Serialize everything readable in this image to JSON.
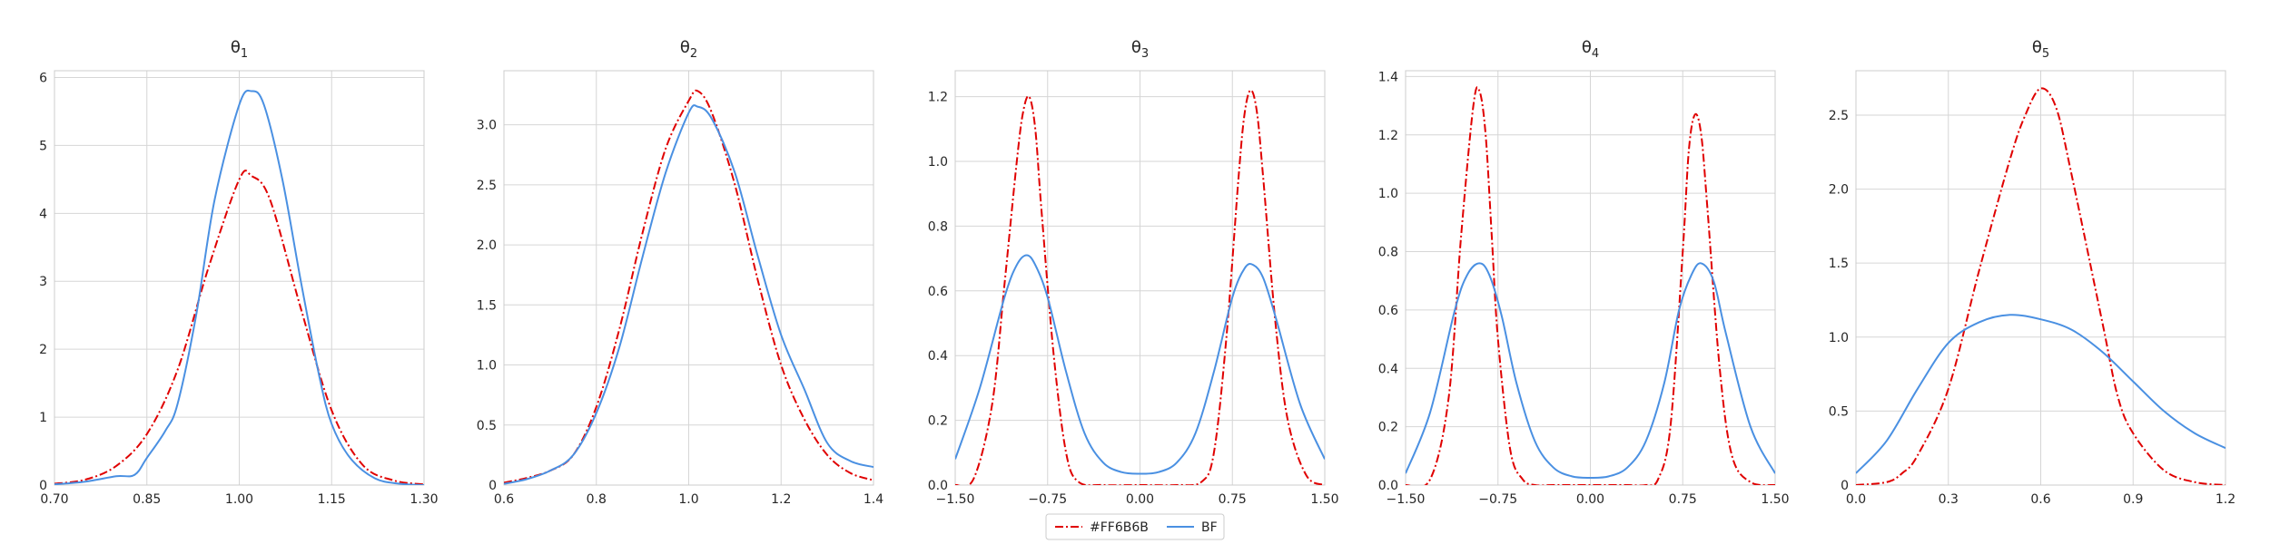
{
  "chart_data": [
    {
      "type": "line",
      "title_base": "θ",
      "title_sub": "1",
      "xlim": [
        0.7,
        1.3
      ],
      "ylim": [
        0,
        6.1
      ],
      "xticks": [
        0.7,
        0.85,
        1.0,
        1.15,
        1.3
      ],
      "xtick_labels": [
        "0.70",
        "0.85",
        "1.00",
        "1.15",
        "1.30"
      ],
      "yticks": [
        0,
        1,
        2,
        3,
        4,
        5,
        6
      ],
      "ytick_labels": [
        "0",
        "1",
        "2",
        "3",
        "4",
        "5",
        "6"
      ],
      "series": [
        {
          "name": "#FF6B6B",
          "x": [
            0.7,
            0.75,
            0.8,
            0.85,
            0.9,
            0.95,
            1.0,
            1.02,
            1.05,
            1.1,
            1.15,
            1.2,
            1.25,
            1.3
          ],
          "y": [
            0.02,
            0.08,
            0.28,
            0.75,
            1.7,
            3.2,
            4.5,
            4.55,
            4.2,
            2.6,
            1.1,
            0.3,
            0.07,
            0.01
          ]
        },
        {
          "name": "BF",
          "x": [
            0.7,
            0.75,
            0.8,
            0.83,
            0.85,
            0.88,
            0.9,
            0.93,
            0.96,
            1.0,
            1.02,
            1.04,
            1.07,
            1.1,
            1.13,
            1.15,
            1.18,
            1.22,
            1.26,
            1.3
          ],
          "y": [
            0.01,
            0.05,
            0.13,
            0.15,
            0.4,
            0.8,
            1.2,
            2.5,
            4.2,
            5.6,
            5.8,
            5.6,
            4.5,
            3.0,
            1.6,
            0.9,
            0.4,
            0.1,
            0.02,
            0.0
          ]
        }
      ]
    },
    {
      "type": "line",
      "title_base": "θ",
      "title_sub": "2",
      "xlim": [
        0.6,
        1.4
      ],
      "ylim": [
        0,
        3.45
      ],
      "xticks": [
        0.6,
        0.8,
        1.0,
        1.2,
        1.4
      ],
      "xtick_labels": [
        "0.6",
        "0.8",
        "1.0",
        "1.2",
        "1.4"
      ],
      "yticks": [
        0,
        0.5,
        1.0,
        1.5,
        2.0,
        2.5,
        3.0
      ],
      "ytick_labels": [
        "0",
        "0.5",
        "1.0",
        "1.5",
        "2.0",
        "2.5",
        "3.0"
      ],
      "series": [
        {
          "name": "#FF6B6B",
          "x": [
            0.6,
            0.65,
            0.7,
            0.75,
            0.8,
            0.85,
            0.9,
            0.95,
            1.0,
            1.02,
            1.05,
            1.1,
            1.15,
            1.2,
            1.25,
            1.3,
            1.35,
            1.4
          ],
          "y": [
            0.02,
            0.06,
            0.12,
            0.25,
            0.65,
            1.3,
            2.1,
            2.8,
            3.2,
            3.28,
            3.1,
            2.5,
            1.7,
            1.0,
            0.55,
            0.25,
            0.1,
            0.04
          ]
        },
        {
          "name": "BF",
          "x": [
            0.6,
            0.65,
            0.7,
            0.75,
            0.8,
            0.85,
            0.9,
            0.95,
            1.0,
            1.02,
            1.05,
            1.1,
            1.15,
            1.2,
            1.25,
            1.3,
            1.35,
            1.4
          ],
          "y": [
            0.01,
            0.05,
            0.12,
            0.25,
            0.6,
            1.15,
            1.9,
            2.6,
            3.1,
            3.15,
            3.05,
            2.6,
            1.9,
            1.25,
            0.8,
            0.35,
            0.2,
            0.15
          ]
        }
      ]
    },
    {
      "type": "line",
      "title_base": "θ",
      "title_sub": "3",
      "xlim": [
        -1.5,
        1.5
      ],
      "ylim": [
        0,
        1.28
      ],
      "xticks": [
        -1.5,
        -0.75,
        0,
        0.75,
        1.5
      ],
      "xtick_labels": [
        "−1.50",
        "−0.75",
        "0.00",
        "0.75",
        "1.50"
      ],
      "yticks": [
        0,
        0.2,
        0.4,
        0.6,
        0.8,
        1.0,
        1.2
      ],
      "ytick_labels": [
        "0.0",
        "0.2",
        "0.4",
        "0.6",
        "0.8",
        "1.0",
        "1.2"
      ],
      "series": [
        {
          "name": "#FF6B6B",
          "x": [
            -1.5,
            -1.35,
            -1.2,
            -1.1,
            -1.0,
            -0.95,
            -0.9,
            -0.85,
            -0.8,
            -0.7,
            -0.6,
            -0.5,
            -0.3,
            0,
            0.3,
            0.5,
            0.6,
            0.7,
            0.8,
            0.85,
            0.9,
            0.95,
            1.0,
            1.1,
            1.2,
            1.35,
            1.5
          ],
          "y": [
            0.0,
            0.02,
            0.25,
            0.62,
            1.0,
            1.15,
            1.2,
            1.1,
            0.85,
            0.4,
            0.1,
            0.01,
            0.0,
            0.0,
            0.0,
            0.01,
            0.1,
            0.45,
            0.95,
            1.15,
            1.22,
            1.15,
            0.95,
            0.5,
            0.2,
            0.03,
            0.0
          ]
        },
        {
          "name": "BF",
          "x": [
            -1.5,
            -1.3,
            -1.1,
            -1.0,
            -0.92,
            -0.85,
            -0.75,
            -0.6,
            -0.45,
            -0.3,
            -0.15,
            0,
            0.15,
            0.3,
            0.45,
            0.6,
            0.75,
            0.85,
            0.92,
            1.0,
            1.1,
            1.3,
            1.5
          ],
          "y": [
            0.08,
            0.3,
            0.58,
            0.68,
            0.71,
            0.68,
            0.58,
            0.35,
            0.16,
            0.07,
            0.04,
            0.035,
            0.04,
            0.07,
            0.16,
            0.35,
            0.58,
            0.67,
            0.68,
            0.64,
            0.52,
            0.25,
            0.08
          ]
        }
      ]
    },
    {
      "type": "line",
      "title_base": "θ",
      "title_sub": "4",
      "xlim": [
        -1.5,
        1.5
      ],
      "ylim": [
        0,
        1.42
      ],
      "xticks": [
        -1.5,
        -0.75,
        0,
        0.75,
        1.5
      ],
      "xtick_labels": [
        "−1.50",
        "−0.75",
        "0.00",
        "0.75",
        "1.50"
      ],
      "yticks": [
        0,
        0.2,
        0.4,
        0.6,
        0.8,
        1.0,
        1.2,
        1.4
      ],
      "ytick_labels": [
        "0.0",
        "0.2",
        "0.4",
        "0.6",
        "0.8",
        "1.0",
        "1.2",
        "1.4"
      ],
      "series": [
        {
          "name": "#FF6B6B",
          "x": [
            -1.5,
            -1.3,
            -1.15,
            -1.05,
            -0.95,
            -0.9,
            -0.85,
            -0.8,
            -0.75,
            -0.65,
            -0.55,
            -0.45,
            -0.3,
            0,
            0.3,
            0.45,
            0.55,
            0.65,
            0.75,
            0.8,
            0.85,
            0.9,
            0.95,
            1.05,
            1.15,
            1.3,
            1.5
          ],
          "y": [
            0.0,
            0.02,
            0.3,
            0.85,
            1.3,
            1.35,
            1.2,
            0.85,
            0.5,
            0.12,
            0.02,
            0.0,
            0.0,
            0.0,
            0.0,
            0.0,
            0.02,
            0.2,
            0.8,
            1.15,
            1.27,
            1.2,
            0.95,
            0.4,
            0.1,
            0.01,
            0.0
          ]
        },
        {
          "name": "BF",
          "x": [
            -1.5,
            -1.3,
            -1.1,
            -1.0,
            -0.9,
            -0.82,
            -0.72,
            -0.6,
            -0.45,
            -0.3,
            -0.15,
            0,
            0.15,
            0.3,
            0.45,
            0.6,
            0.72,
            0.82,
            0.9,
            1.0,
            1.1,
            1.3,
            1.5
          ],
          "y": [
            0.04,
            0.25,
            0.6,
            0.72,
            0.76,
            0.72,
            0.58,
            0.35,
            0.15,
            0.06,
            0.03,
            0.025,
            0.03,
            0.06,
            0.15,
            0.35,
            0.6,
            0.72,
            0.76,
            0.7,
            0.52,
            0.2,
            0.04
          ]
        }
      ]
    },
    {
      "type": "line",
      "title_base": "θ",
      "title_sub": "5",
      "xlim": [
        0,
        1.2
      ],
      "ylim": [
        0,
        2.8
      ],
      "xticks": [
        0,
        0.3,
        0.6,
        0.9,
        1.2
      ],
      "xtick_labels": [
        "0.0",
        "0.3",
        "0.6",
        "0.9",
        "1.2"
      ],
      "yticks": [
        0,
        0.5,
        1.0,
        1.5,
        2.0,
        2.5
      ],
      "ytick_labels": [
        "0",
        "0.5",
        "1.0",
        "1.5",
        "2.0",
        "2.5"
      ],
      "series": [
        {
          "name": "#FF6B6B",
          "x": [
            0,
            0.1,
            0.15,
            0.2,
            0.3,
            0.4,
            0.5,
            0.55,
            0.6,
            0.65,
            0.7,
            0.8,
            0.85,
            0.9,
            1.0,
            1.1,
            1.2
          ],
          "y": [
            0.0,
            0.02,
            0.08,
            0.2,
            0.65,
            1.45,
            2.2,
            2.5,
            2.68,
            2.55,
            2.1,
            1.1,
            0.6,
            0.35,
            0.1,
            0.02,
            0.0
          ]
        },
        {
          "name": "BF",
          "x": [
            0,
            0.1,
            0.2,
            0.3,
            0.4,
            0.5,
            0.6,
            0.7,
            0.8,
            0.9,
            1.0,
            1.1,
            1.2
          ],
          "y": [
            0.08,
            0.3,
            0.65,
            0.96,
            1.1,
            1.15,
            1.12,
            1.05,
            0.9,
            0.7,
            0.5,
            0.35,
            0.25
          ]
        }
      ]
    }
  ],
  "legend": {
    "entries": [
      {
        "label": "#FF6B6B",
        "color": "#e00000",
        "style": "dashdot"
      },
      {
        "label": "BF",
        "color": "#4a90e2",
        "style": "solid"
      }
    ]
  },
  "colors": {
    "series_red": "#e00000",
    "series_blue": "#4a90e2"
  }
}
